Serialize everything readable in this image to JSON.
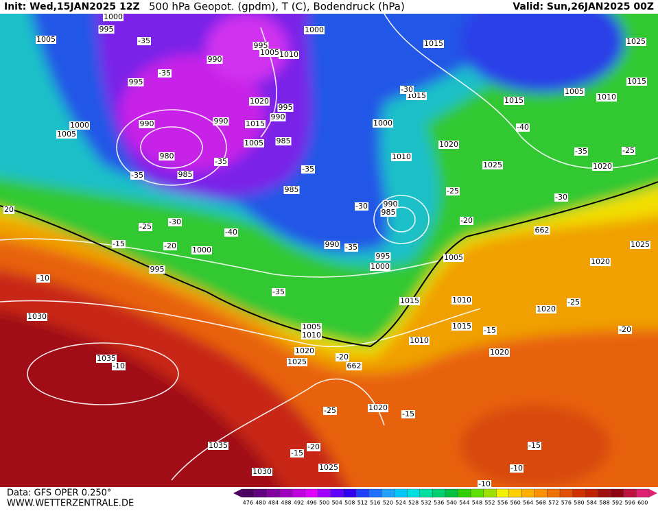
{
  "header": {
    "init": "Init: Wed,15JAN2025 12Z",
    "title": "500 hPa Geopot. (gpdm), T (C), Bodendruck (hPa)",
    "valid": "Valid: Sun,26JAN2025 00Z"
  },
  "footer": {
    "data_source": "Data: GFS OPER 0.250°",
    "website": "WWW.WETTERZENTRALE.DE"
  },
  "map": {
    "isobar_labels": [
      "1000",
      "995",
      "1005",
      "1000",
      "995",
      "1005",
      "1010",
      "990",
      "1015",
      "1025",
      "995",
      "1015",
      "1020",
      "995",
      "1015",
      "1005",
      "1015",
      "1010",
      "990",
      "990",
      "990",
      "1015",
      "1000",
      "1000",
      "1005",
      "1005",
      "985",
      "1020",
      "980",
      "1010",
      "1025",
      "1020",
      "985",
      "985",
      "990",
      "985",
      "20",
      "662",
      "1000",
      "990",
      "1005",
      "1025",
      "1020",
      "995",
      "995",
      "1000",
      "1015",
      "1010",
      "1020",
      "1030",
      "1005",
      "1010",
      "1015",
      "1010",
      "1020",
      "1020",
      "1025",
      "1035",
      "662",
      "1020",
      "1035",
      "1030",
      "1025"
    ],
    "temperature_labels": [
      "-35",
      "-35",
      "-30",
      "-40",
      "-35",
      "-25",
      "-35",
      "-35",
      "-35",
      "-25",
      "-30",
      "-20",
      "-30",
      "-25",
      "-30",
      "-40",
      "-15",
      "-20",
      "-35",
      "-10",
      "-35",
      "-25",
      "-15",
      "-20",
      "-10",
      "-20",
      "-25",
      "-15",
      "-20",
      "-15",
      "-15",
      "-10",
      "-10"
    ]
  },
  "colorbar": {
    "levels": [
      476,
      480,
      484,
      488,
      492,
      496,
      500,
      504,
      508,
      512,
      516,
      520,
      524,
      528,
      532,
      536,
      540,
      544,
      548,
      552,
      556,
      560,
      564,
      568,
      572,
      576,
      580,
      584,
      588,
      592,
      596,
      600
    ],
    "colors": [
      "#4b0060",
      "#600080",
      "#8000a0",
      "#a000c0",
      "#c000e0",
      "#e000ff",
      "#a000ff",
      "#6000ff",
      "#3000f0",
      "#2040ff",
      "#2070ff",
      "#20a0ff",
      "#00c8ff",
      "#00e0e0",
      "#00e0a0",
      "#00d070",
      "#00c040",
      "#30d000",
      "#60e000",
      "#a0e000",
      "#f0f000",
      "#ffd000",
      "#ffb000",
      "#ff9000",
      "#f07000",
      "#e05000",
      "#d03000",
      "#c02000",
      "#a01010",
      "#900010",
      "#c01040",
      "#e02070"
    ]
  }
}
